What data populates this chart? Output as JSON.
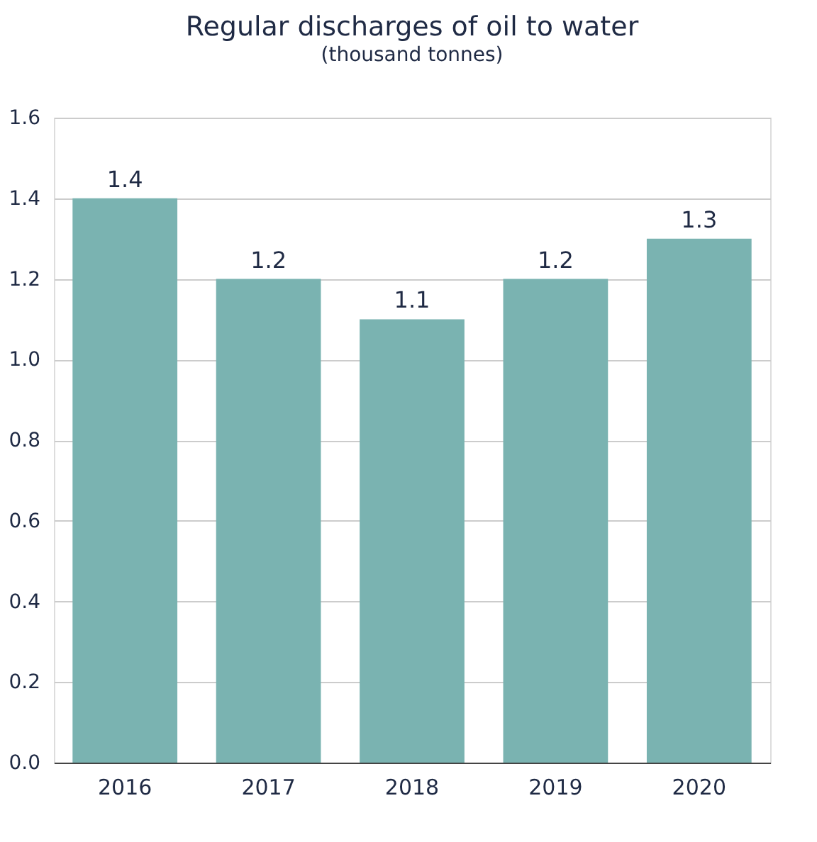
{
  "chart_data": {
    "type": "bar",
    "title": "Regular discharges of oil to water",
    "subtitle": "(thousand tonnes)",
    "categories": [
      "2016",
      "2017",
      "2018",
      "2019",
      "2020"
    ],
    "values": [
      1.4,
      1.2,
      1.1,
      1.2,
      1.3
    ],
    "color": "#7ab3b1",
    "ylim": [
      0,
      1.6
    ],
    "yticks": [
      {
        "value": 0,
        "label": "0.0"
      },
      {
        "value": 0.2,
        "label": "0.2"
      },
      {
        "value": 0.4,
        "label": "0.4"
      },
      {
        "value": 0.6,
        "label": "0.6"
      },
      {
        "value": 0.8,
        "label": "0.8"
      },
      {
        "value": 1.0,
        "label": "1.0"
      },
      {
        "value": 1.2,
        "label": "1.2"
      },
      {
        "value": 1.4,
        "label": "1.4"
      },
      {
        "value": 1.6,
        "label": "1.6"
      }
    ],
    "grid": "y",
    "data_labels": true
  }
}
